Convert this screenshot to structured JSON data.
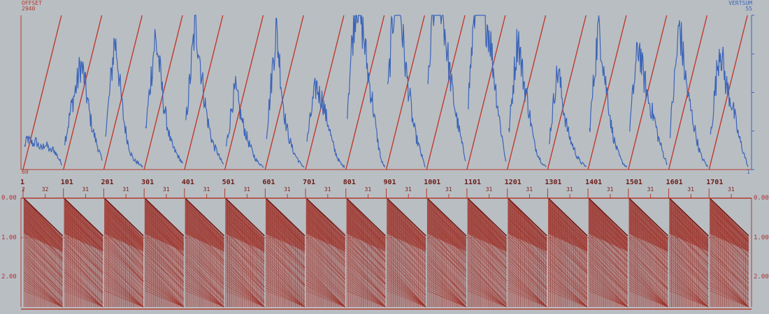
{
  "labels": {
    "top_left_title": "OFFSET",
    "top_left_value": "2940",
    "top_left_min": "60",
    "top_right_title": "VERTSUM",
    "top_right_value": "55",
    "top_right_min": "1"
  },
  "colors": {
    "background": "#b9bec3",
    "offset_line": "#c0392b",
    "vertsum_line": "#3a64b8",
    "seismic": "#9c2a20",
    "axis_red": "#b23a2a"
  },
  "trace_numbers": [
    "1",
    "101",
    "201",
    "301",
    "401",
    "501",
    "601",
    "701",
    "801",
    "901",
    "1001",
    "1101",
    "1201",
    "1301",
    "1401",
    "1501",
    "1601",
    "1701"
  ],
  "sub_tick_labels": {
    "first": [
      "2",
      "32"
    ],
    "repeat": "31"
  },
  "time_axis": {
    "labels": [
      "0.00",
      "1.00",
      "2.00"
    ]
  },
  "chart_data": {
    "type": "line",
    "title": "",
    "xlabel": "",
    "ylabel_left": "OFFSET",
    "ylabel_right": "VERTSUM",
    "offset_range": [
      60,
      2940
    ],
    "vertsum_range": [
      1,
      55
    ],
    "panels": 18,
    "series": [
      {
        "name": "OFFSET",
        "description_axis": "left",
        "pattern": "linear ramp from 60 to 2940 within each shot gather, repeated per panel",
        "values_per_panel": [
          60,
          2940
        ]
      },
      {
        "name": "VERTSUM",
        "description_axis": "right",
        "values": [
          [
            10,
            13,
            12,
            11,
            12,
            10,
            9,
            11,
            10,
            8,
            9,
            7,
            5,
            3
          ],
          [
            12,
            18,
            25,
            30,
            35,
            42,
            38,
            30,
            22,
            16,
            12,
            8,
            4
          ],
          [
            15,
            25,
            38,
            52,
            44,
            30,
            20,
            13,
            8,
            5,
            4,
            3,
            2
          ],
          [
            16,
            28,
            40,
            52,
            46,
            35,
            25,
            18,
            12,
            9,
            7,
            5,
            3
          ],
          [
            20,
            32,
            45,
            58,
            50,
            38,
            28,
            20,
            14,
            10,
            8,
            5,
            3
          ],
          [
            10,
            18,
            28,
            32,
            26,
            20,
            16,
            12,
            9,
            6,
            4,
            3,
            2
          ],
          [
            15,
            28,
            42,
            56,
            45,
            30,
            20,
            14,
            10,
            7,
            5,
            3,
            2
          ],
          [
            12,
            20,
            28,
            34,
            30,
            28,
            22,
            18,
            12,
            8,
            5,
            3,
            2
          ],
          [
            25,
            42,
            58,
            70,
            62,
            55,
            45,
            35,
            28,
            18,
            10,
            4,
            2
          ],
          [
            30,
            48,
            65,
            80,
            65,
            50,
            38,
            30,
            20,
            14,
            10,
            6,
            2
          ],
          [
            32,
            50,
            68,
            84,
            70,
            60,
            48,
            38,
            30,
            22,
            16,
            10,
            5
          ],
          [
            28,
            46,
            62,
            78,
            72,
            62,
            58,
            52,
            40,
            30,
            20,
            12,
            4
          ],
          [
            15,
            28,
            42,
            54,
            42,
            34,
            28,
            20,
            12,
            8,
            5,
            3,
            2
          ],
          [
            12,
            22,
            34,
            40,
            30,
            22,
            16,
            12,
            9,
            6,
            4,
            3,
            2
          ],
          [
            16,
            30,
            45,
            58,
            48,
            36,
            28,
            18,
            12,
            8,
            5,
            3,
            2
          ],
          [
            18,
            30,
            42,
            50,
            40,
            34,
            28,
            24,
            20,
            14,
            10,
            6,
            3
          ],
          [
            16,
            30,
            44,
            58,
            46,
            36,
            28,
            22,
            16,
            10,
            6,
            4,
            2
          ],
          [
            14,
            26,
            38,
            50,
            42,
            34,
            30,
            26,
            20,
            14,
            10,
            6,
            2
          ]
        ]
      }
    ],
    "seismic_panel": {
      "type": "heatmap",
      "time_axis_s": [
        0.0,
        1.0,
        2.0
      ],
      "time_max_s": 2.75,
      "first_break_velocity_note": "linear moveout per gather",
      "trace_labels": [
        "1",
        "101",
        "201",
        "301",
        "401",
        "501",
        "601",
        "701",
        "801",
        "901",
        "1001",
        "1101",
        "1201",
        "1301",
        "1401",
        "1501",
        "1601",
        "1701"
      ]
    }
  }
}
